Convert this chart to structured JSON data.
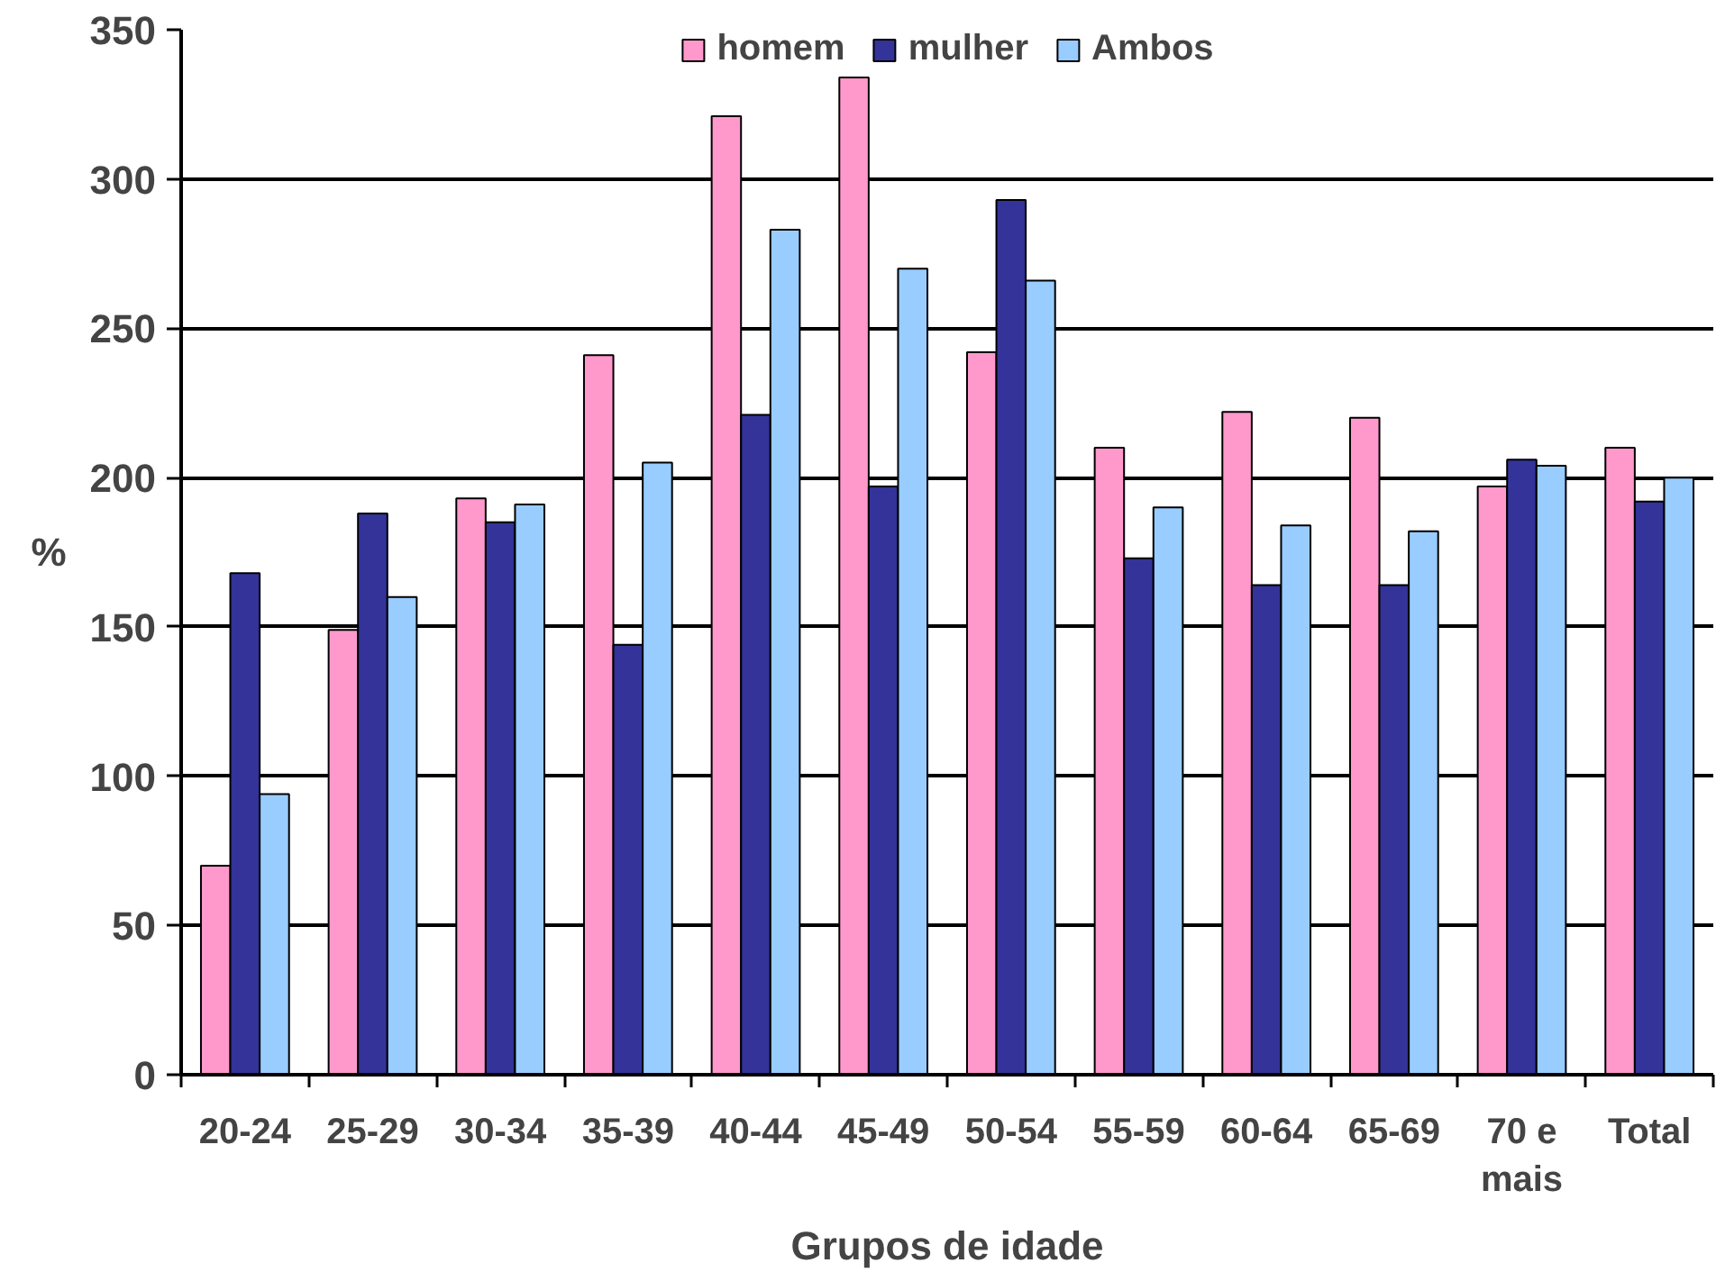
{
  "chart_data": {
    "type": "bar",
    "xlabel": "Grupos de idade",
    "ylabel": "%",
    "categories": [
      "20-24",
      "25-29",
      "30-34",
      "35-39",
      "40-44",
      "45-49",
      "50-54",
      "55-59",
      "60-64",
      "65-69",
      "70 e mais",
      "Total"
    ],
    "series": [
      {
        "name": "homem",
        "color": "#ff99cc",
        "values": [
          70,
          149,
          193,
          241,
          321,
          334,
          242,
          210,
          222,
          220,
          197,
          210
        ]
      },
      {
        "name": "mulher",
        "color": "#333399",
        "values": [
          168,
          188,
          185,
          144,
          221,
          197,
          293,
          173,
          164,
          164,
          206,
          192
        ]
      },
      {
        "name": "Ambos",
        "color": "#99ccff",
        "values": [
          94,
          160,
          191,
          205,
          283,
          270,
          266,
          190,
          184,
          182,
          204,
          200
        ]
      }
    ],
    "ylim": [
      0,
      350
    ],
    "yticks": [
      0,
      50,
      100,
      150,
      200,
      250,
      300,
      350
    ],
    "grid": "y",
    "legend": "top"
  }
}
